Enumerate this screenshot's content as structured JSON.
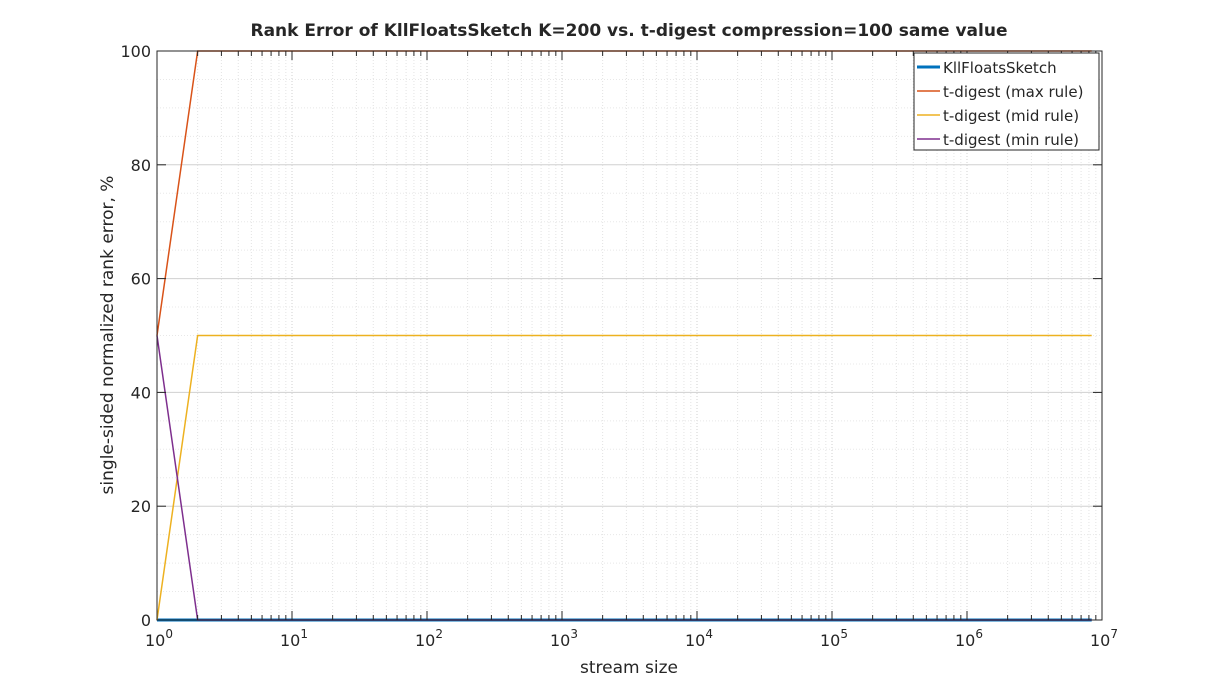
{
  "chart_data": {
    "type": "line",
    "title": "Rank Error of KllFloatsSketch K=200 vs. t-digest compression=100 same value",
    "xlabel": "stream size",
    "ylabel": "single-sided normalized rank error, %",
    "xscale": "log",
    "xlim": [
      1,
      10000000
    ],
    "ylim": [
      0,
      100
    ],
    "xticks": [
      {
        "base": "10",
        "exp": "0"
      },
      {
        "base": "10",
        "exp": "1"
      },
      {
        "base": "10",
        "exp": "2"
      },
      {
        "base": "10",
        "exp": "3"
      },
      {
        "base": "10",
        "exp": "4"
      },
      {
        "base": "10",
        "exp": "5"
      },
      {
        "base": "10",
        "exp": "6"
      },
      {
        "base": "10",
        "exp": "7"
      }
    ],
    "yticks": [
      "0",
      "20",
      "40",
      "60",
      "80",
      "100"
    ],
    "grid": true,
    "legend_position": "top-right",
    "x": [
      1,
      2,
      4,
      8,
      16,
      32,
      64,
      128,
      256,
      512,
      1024,
      2048,
      4096,
      8192,
      16384,
      32768,
      65536,
      131072,
      262144,
      524288,
      1048576,
      2097152,
      4194304,
      8388608
    ],
    "series": [
      {
        "name": "KllFloatsSketch",
        "color": "#0072BD",
        "width": 3,
        "values": [
          0,
          0,
          0,
          0,
          0,
          0,
          0,
          0,
          0,
          0,
          0,
          0,
          0,
          0,
          0,
          0,
          0,
          0,
          0,
          0,
          0,
          0,
          0,
          0
        ]
      },
      {
        "name": "t-digest (max rule)",
        "color": "#D95319",
        "width": 1.5,
        "values": [
          50,
          100,
          100,
          100,
          100,
          100,
          100,
          100,
          100,
          100,
          100,
          100,
          100,
          100,
          100,
          100,
          100,
          100,
          100,
          100,
          100,
          100,
          100,
          100
        ]
      },
      {
        "name": "t-digest (mid rule)",
        "color": "#EDB120",
        "width": 1.5,
        "values": [
          0,
          50,
          50,
          50,
          50,
          50,
          50,
          50,
          50,
          50,
          50,
          50,
          50,
          50,
          50,
          50,
          50,
          50,
          50,
          50,
          50,
          50,
          50,
          50
        ]
      },
      {
        "name": "t-digest (min rule)",
        "color": "#7E2F8E",
        "width": 1.5,
        "values": [
          50,
          0,
          0,
          0,
          0,
          0,
          0,
          0,
          0,
          0,
          0,
          0,
          0,
          0,
          0,
          0,
          0,
          0,
          0,
          0,
          0,
          0,
          0,
          0
        ]
      }
    ]
  }
}
